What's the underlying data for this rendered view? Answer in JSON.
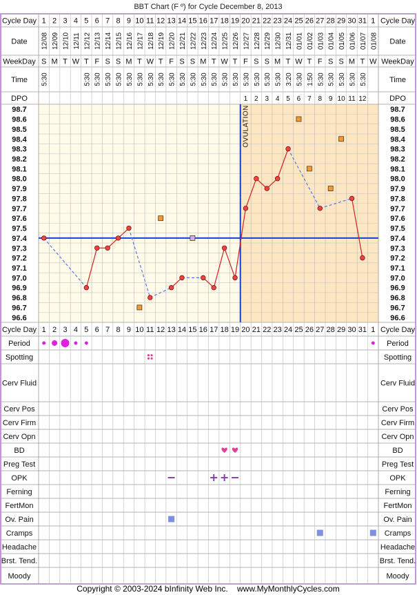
{
  "title": "BBT Chart (F º) for Cycle December 8, 2013",
  "copyright": "Copyright © 2003-2024 bInfinity Web Inc.    www.MyMonthlyCycles.com",
  "colors": {
    "border": "#b070d0",
    "grid": "#9a9a9a",
    "pre_bg": "#fffbe8",
    "post_bg": "#fde6c2",
    "temp_line": "#d42020",
    "temp_fill": "#ee4444",
    "dash_line": "#5577ee",
    "coverline": "#1a3bd6",
    "ovulation": "#1a3bd6",
    "discarded_fill": "#f29a3a",
    "period": "#e020e0",
    "spotting": "#e0409a",
    "bd": "#e0409a",
    "opk": "#8844aa",
    "symptom": "#8090e0"
  },
  "labels": {
    "cycle_day": "Cycle Day",
    "date": "Date",
    "weekday": "WeekDay",
    "time": "Time",
    "dpo": "DPO",
    "ovulation": "OVULATION"
  },
  "cycle_days": [
    "1",
    "2",
    "3",
    "4",
    "5",
    "6",
    "7",
    "8",
    "9",
    "10",
    "11",
    "12",
    "13",
    "14",
    "15",
    "16",
    "17",
    "18",
    "19",
    "20",
    "21",
    "22",
    "23",
    "24",
    "25",
    "26",
    "27",
    "28",
    "29",
    "30",
    "31",
    "1"
  ],
  "dates": [
    "12/08",
    "12/09",
    "12/10",
    "12/11",
    "12/12",
    "12/13",
    "12/14",
    "12/15",
    "12/16",
    "12/17",
    "12/18",
    "12/19",
    "12/20",
    "12/21",
    "12/22",
    "12/23",
    "12/24",
    "12/25",
    "12/26",
    "12/27",
    "12/28",
    "12/29",
    "12/30",
    "12/31",
    "01/01",
    "01/02",
    "01/03",
    "01/04",
    "01/05",
    "01/06",
    "01/07",
    "01/08"
  ],
  "weekdays": [
    "S",
    "M",
    "T",
    "W",
    "T",
    "F",
    "S",
    "S",
    "M",
    "T",
    "W",
    "T",
    "F",
    "S",
    "S",
    "M",
    "T",
    "W",
    "T",
    "F",
    "S",
    "S",
    "M",
    "T",
    "W",
    "T",
    "F",
    "S",
    "S",
    "M",
    "T",
    "W"
  ],
  "times": [
    "5:30",
    "",
    "",
    "",
    "5:30",
    "5:30",
    "5:30",
    "5:30",
    "5:30",
    "5:30",
    "5:30",
    "5:30",
    "5:30",
    "5:30",
    "5:30",
    "5:30",
    "5:30",
    "5:30",
    "5:30",
    "5:30",
    "5:30",
    "5:30",
    "5:30",
    "3:20",
    "5:30",
    "1:50",
    "5:30",
    "5:30",
    "5:30",
    "5:30",
    "5:30",
    ""
  ],
  "dpo": [
    "",
    "",
    "",
    "",
    "",
    "",
    "",
    "",
    "",
    "",
    "",
    "",
    "",
    "",
    "",
    "",
    "",
    "",
    "",
    "1",
    "2",
    "3",
    "4",
    "5",
    "6",
    "7",
    "8",
    "9",
    "10",
    "11",
    "12",
    ""
  ],
  "temp_labels": [
    "98.7",
    "98.6",
    "98.5",
    "98.4",
    "98.3",
    "98.2",
    "98.1",
    "98.0",
    "97.9",
    "97.8",
    "97.7",
    "97.6",
    "97.5",
    "97.4",
    "97.3",
    "97.2",
    "97.1",
    "97.0",
    "96.9",
    "96.8",
    "96.7",
    "96.6"
  ],
  "chart_data": {
    "type": "line",
    "title": "BBT Chart (F º) for Cycle December 8, 2013",
    "ylim": [
      96.6,
      98.7
    ],
    "temperatures": [
      97.4,
      null,
      null,
      null,
      96.9,
      97.3,
      97.3,
      97.4,
      97.5,
      null,
      96.8,
      null,
      96.9,
      97.0,
      null,
      97.0,
      96.9,
      97.3,
      97.0,
      97.7,
      98.0,
      97.9,
      98.0,
      98.3,
      null,
      null,
      97.7,
      null,
      null,
      97.8,
      97.2,
      null
    ],
    "discarded": [
      {
        "day": 10,
        "value": 96.7
      },
      {
        "day": 12,
        "value": 97.6
      },
      {
        "day": 15,
        "value": 97.4
      },
      {
        "day": 25,
        "value": 98.6
      },
      {
        "day": 26,
        "value": 98.1
      },
      {
        "day": 28,
        "value": 97.9
      },
      {
        "day": 29,
        "value": 98.4
      }
    ],
    "coverline": 97.4,
    "ovulation_day": 19
  },
  "symptom_rows": [
    "Period",
    "Spotting",
    "Cerv Fluid",
    "Cerv Pos",
    "Cerv Firm",
    "Cerv Opn",
    "BD",
    "Preg Test",
    "OPK",
    "Ferning",
    "FertMon",
    "Ov. Pain",
    "Cramps",
    "Headache",
    "Brst. Tend.",
    "Moody"
  ],
  "symptoms": {
    "period": [
      {
        "day": 1,
        "size": "small"
      },
      {
        "day": 2,
        "size": "medium"
      },
      {
        "day": 3,
        "size": "large"
      },
      {
        "day": 4,
        "size": "small"
      },
      {
        "day": 5,
        "size": "small"
      },
      {
        "day": 32,
        "size": "small"
      }
    ],
    "spotting": [
      11
    ],
    "bd": [
      18,
      19
    ],
    "opk": [
      {
        "day": 13,
        "mark": "−"
      },
      {
        "day": 17,
        "mark": "+"
      },
      {
        "day": 18,
        "mark": "+"
      },
      {
        "day": 19,
        "mark": "−"
      }
    ],
    "ov_pain": [
      13
    ],
    "cramps": [
      27,
      32
    ]
  }
}
